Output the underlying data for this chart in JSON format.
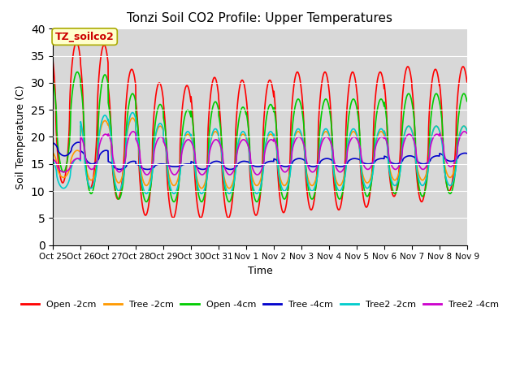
{
  "title": "Tonzi Soil CO2 Profile: Upper Temperatures",
  "xlabel": "Time",
  "ylabel": "Soil Temperature (C)",
  "ylim": [
    0,
    40
  ],
  "yticks": [
    0,
    5,
    10,
    15,
    20,
    25,
    30,
    35,
    40
  ],
  "plot_bg": "#d8d8d8",
  "fig_bg": "#ffffff",
  "series": [
    {
      "label": "Open -2cm",
      "color": "#ff0000",
      "lw": 1.2
    },
    {
      "label": "Tree -2cm",
      "color": "#ff9900",
      "lw": 1.2
    },
    {
      "label": "Open -4cm",
      "color": "#00cc00",
      "lw": 1.2
    },
    {
      "label": "Tree -4cm",
      "color": "#0000cc",
      "lw": 1.2
    },
    {
      "label": "Tree2 -2cm",
      "color": "#00cccc",
      "lw": 1.2
    },
    {
      "label": "Tree2 -4cm",
      "color": "#cc00cc",
      "lw": 1.2
    }
  ],
  "xtick_labels": [
    "Oct 25",
    "Oct 26",
    "Oct 27",
    "Oct 28",
    "Oct 29",
    "Oct 30",
    "Oct 31",
    "Nov 1",
    "Nov 2",
    "Nov 3",
    "Nov 4",
    "Nov 5",
    "Nov 6",
    "Nov 7",
    "Nov 8",
    "Nov 9"
  ],
  "annotation_text": "TZ_soilco2",
  "annotation_color": "#cc0000",
  "annotation_bg": "#ffffcc",
  "annotation_edge": "#aaaa00",
  "figsize": [
    6.4,
    4.8
  ],
  "dpi": 100,
  "n_days": 15,
  "n_pts_per_day": 144
}
